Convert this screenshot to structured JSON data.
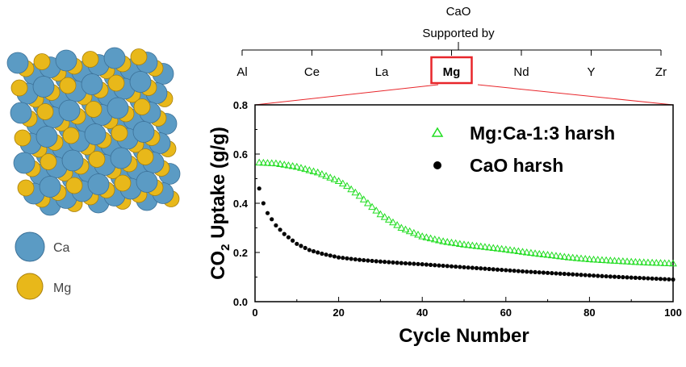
{
  "header": {
    "line1": "CaO",
    "line2": "Supported by",
    "supports": [
      "Al",
      "Ce",
      "La",
      "Mg",
      "Nd",
      "Y",
      "Zr"
    ],
    "highlighted": "Mg",
    "highlight_color": "#e8262b"
  },
  "crystal": {
    "legend": [
      {
        "label": "Ca",
        "color": "#5b9bc4"
      },
      {
        "label": "Mg",
        "color": "#e8b81a"
      }
    ]
  },
  "chart_data": {
    "type": "scatter",
    "xlabel": "Cycle Number",
    "ylabel_main": "CO",
    "ylabel_sub": "2",
    "ylabel_rest": " Uptake (g/g)",
    "xlim": [
      0,
      100
    ],
    "ylim": [
      0,
      0.8
    ],
    "x_ticks": [
      0,
      20,
      40,
      60,
      80,
      100
    ],
    "x_tick_labels": [
      "0",
      "20",
      "40",
      "60",
      "80",
      "100"
    ],
    "y_ticks": [
      0,
      0.2,
      0.4,
      0.6,
      0.8
    ],
    "y_tick_labels": [
      "0.0",
      "0.2",
      "0.4",
      "0.6",
      "0.8"
    ],
    "legend_position": "top-right",
    "series": [
      {
        "name": "Mg:Ca-1:3 harsh",
        "marker": "triangle-open",
        "color": "#22dd22",
        "x": [
          1,
          5,
          10,
          15,
          20,
          22,
          25,
          28,
          30,
          35,
          40,
          45,
          50,
          55,
          60,
          65,
          70,
          75,
          80,
          85,
          90,
          95,
          100
        ],
        "values": [
          0.565,
          0.562,
          0.548,
          0.525,
          0.49,
          0.47,
          0.43,
          0.385,
          0.355,
          0.3,
          0.265,
          0.245,
          0.232,
          0.222,
          0.212,
          0.2,
          0.19,
          0.18,
          0.172,
          0.167,
          0.162,
          0.158,
          0.155
        ]
      },
      {
        "name": "CaO harsh",
        "marker": "circle-filled",
        "color": "#000000",
        "x": [
          1,
          2,
          3,
          5,
          7,
          10,
          13,
          16,
          20,
          25,
          30,
          35,
          40,
          45,
          50,
          55,
          60,
          65,
          70,
          75,
          80,
          85,
          90,
          95,
          100
        ],
        "values": [
          0.46,
          0.4,
          0.36,
          0.31,
          0.275,
          0.235,
          0.21,
          0.195,
          0.18,
          0.17,
          0.163,
          0.157,
          0.152,
          0.146,
          0.14,
          0.134,
          0.128,
          0.122,
          0.117,
          0.112,
          0.107,
          0.102,
          0.098,
          0.094,
          0.09
        ]
      }
    ]
  }
}
